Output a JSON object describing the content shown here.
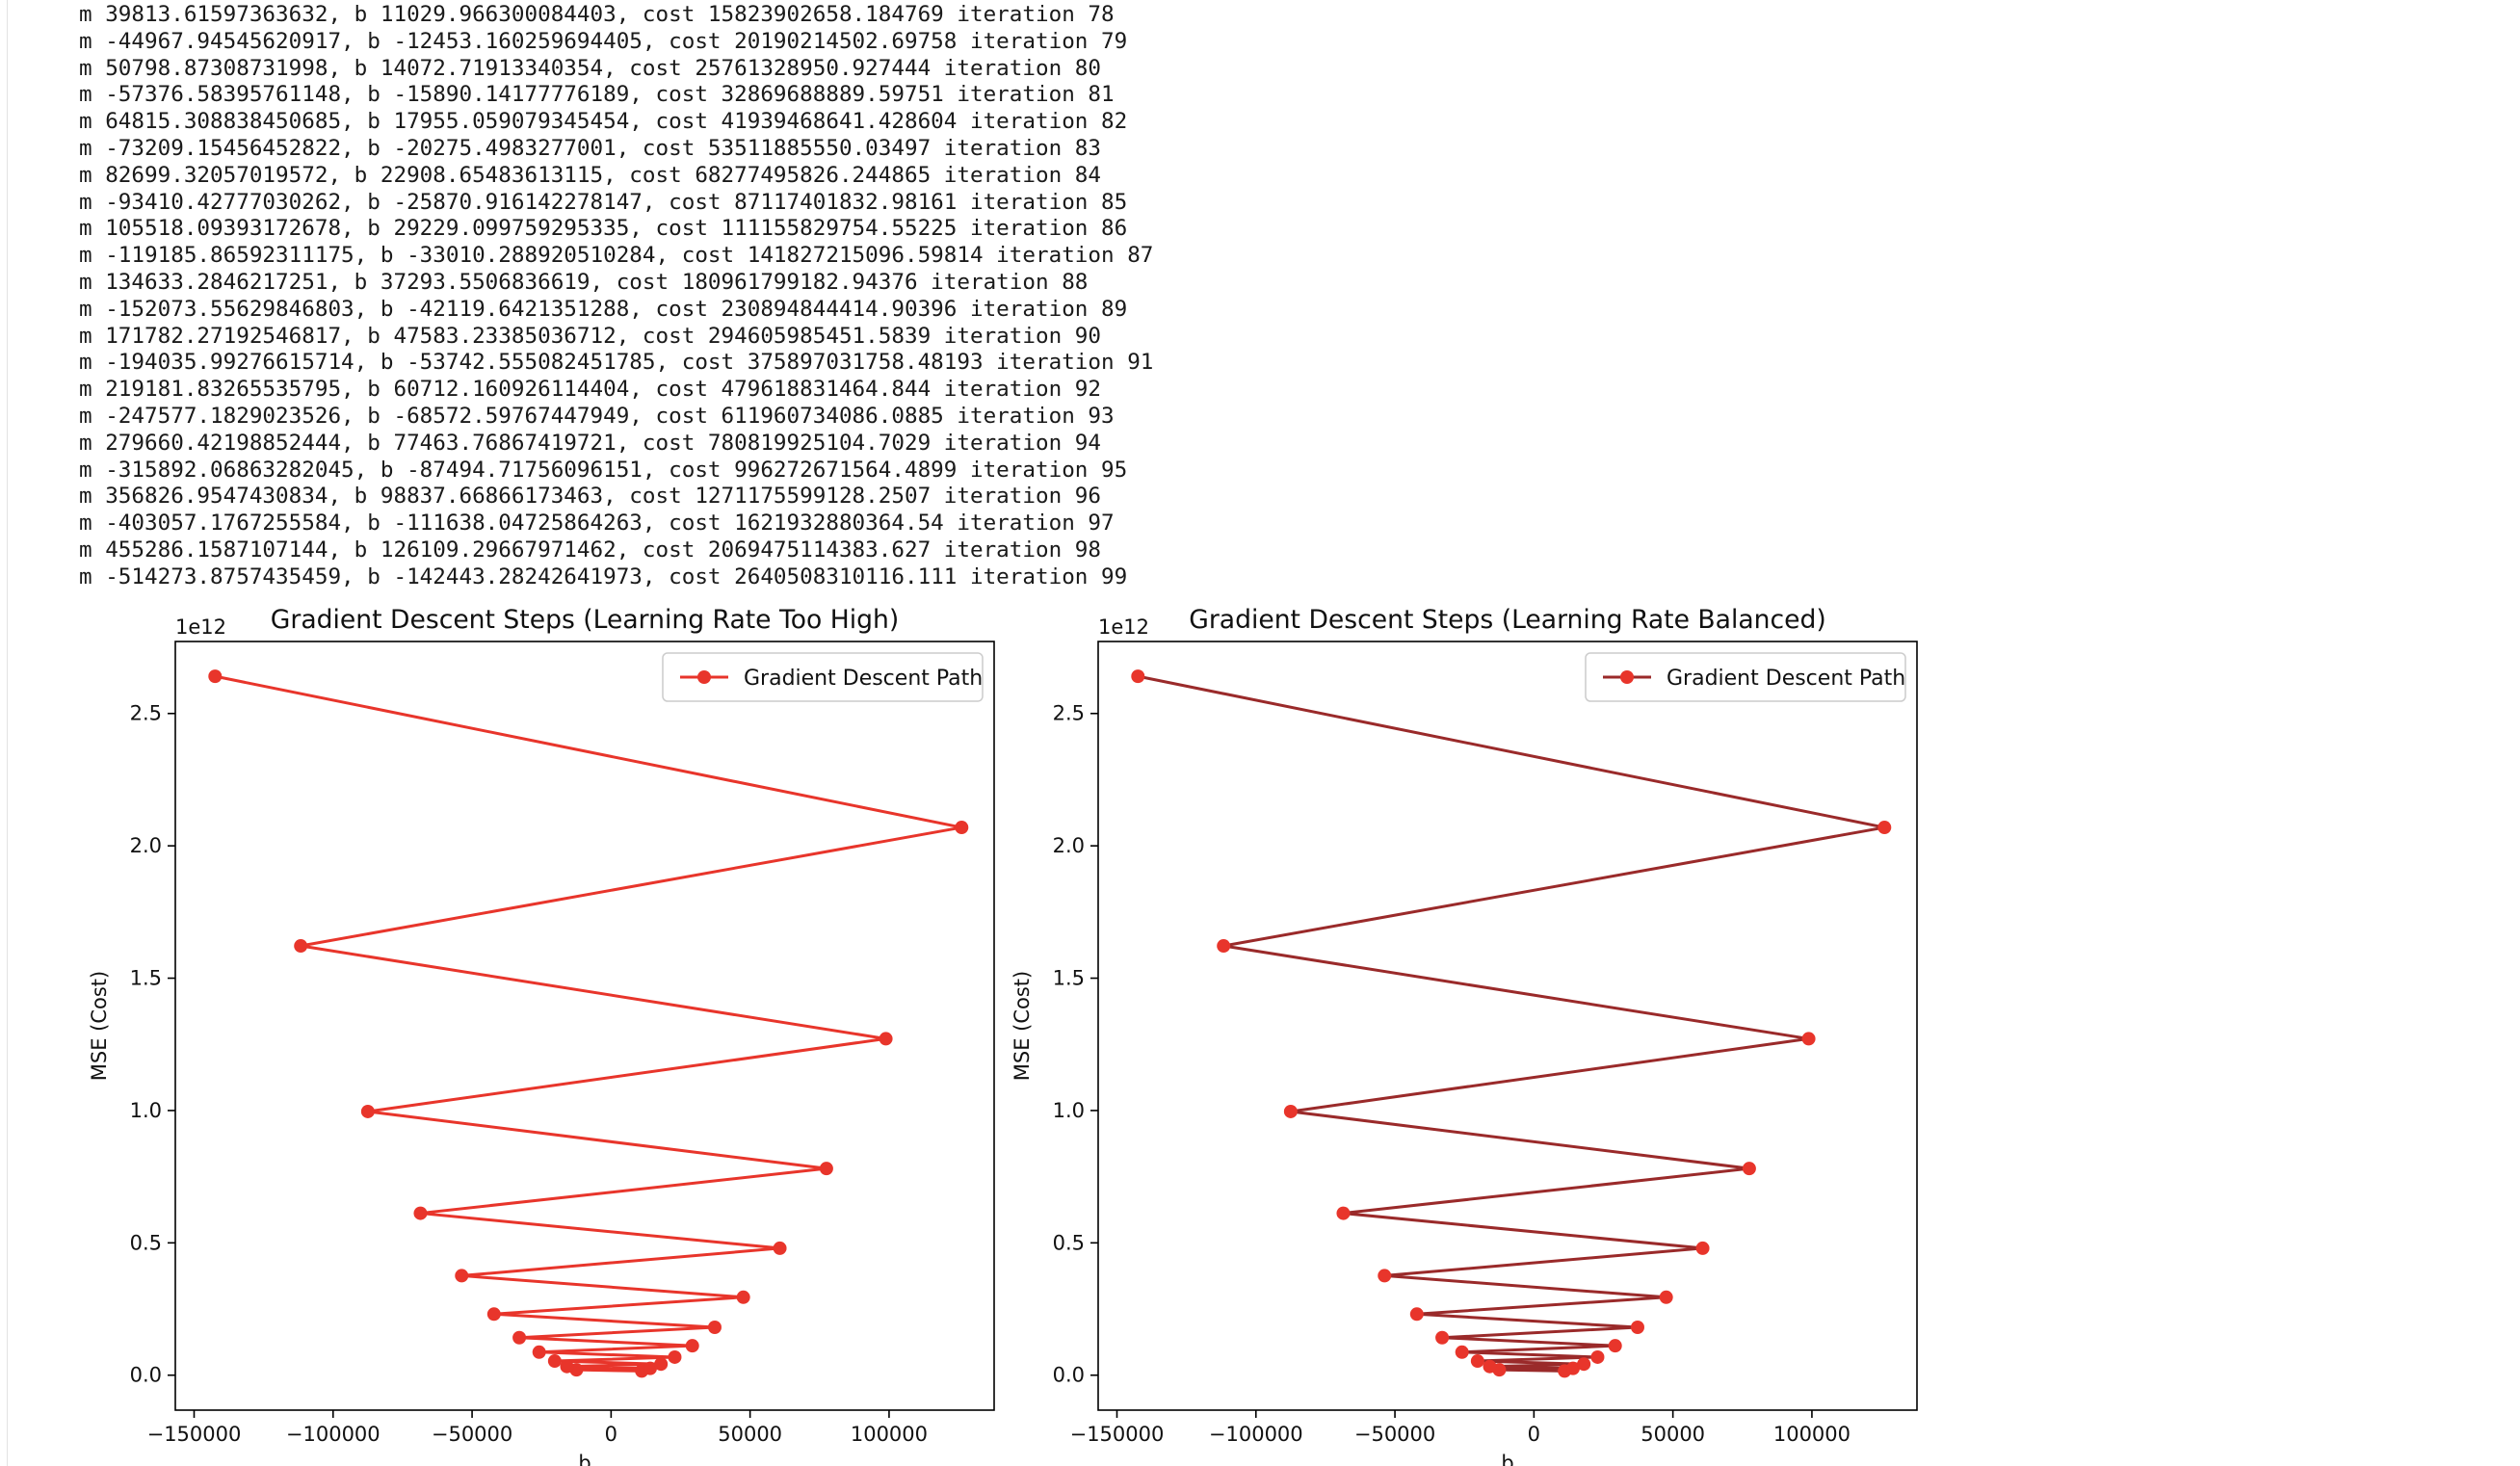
{
  "log_lines": [
    "m 39813.61597363632, b 11029.966300084403, cost 15823902658.184769 iteration 78",
    "m -44967.94545620917, b -12453.160259694405, cost 20190214502.69758 iteration 79",
    "m 50798.87308731998, b 14072.71913340354, cost 25761328950.927444 iteration 80",
    "m -57376.58395761148, b -15890.14177776189, cost 32869688889.59751 iteration 81",
    "m 64815.308838450685, b 17955.059079345454, cost 41939468641.428604 iteration 82",
    "m -73209.15456452822, b -20275.4983277001, cost 53511885550.03497 iteration 83",
    "m 82699.32057019572, b 22908.65483613115, cost 68277495826.244865 iteration 84",
    "m -93410.42777030262, b -25870.916142278147, cost 87117401832.98161 iteration 85",
    "m 105518.09393172678, b 29229.099759295335, cost 111155829754.55225 iteration 86",
    "m -119185.86592311175, b -33010.288920510284, cost 141827215096.59814 iteration 87",
    "m 134633.2846217251, b 37293.5506836619, cost 180961799182.94376 iteration 88",
    "m -152073.55629846803, b -42119.6421351288, cost 230894844414.90396 iteration 89",
    "m 171782.27192546817, b 47583.23385036712, cost 294605985451.5839 iteration 90",
    "m -194035.99276615714, b -53742.555082451785, cost 375897031758.48193 iteration 91",
    "m 219181.83265535795, b 60712.160926114404, cost 479618831464.844 iteration 92",
    "m -247577.1829023526, b -68572.59767447949, cost 611960734086.0885 iteration 93",
    "m 279660.42198852444, b 77463.76867419721, cost 780819925104.7029 iteration 94",
    "m -315892.06863282045, b -87494.71756096151, cost 996272671564.4899 iteration 95",
    "m 356826.9547430834, b 98837.66866173463, cost 1271175599128.2507 iteration 96",
    "m -403057.1767255584, b -111638.04725864263, cost 1621932880364.54 iteration 97",
    "m 455286.1587107144, b 126109.29667971462, cost 2069475114383.627 iteration 98",
    "m -514273.8757435459, b -142443.28242641973, cost 2640508310116.111 iteration 99"
  ],
  "chart_data": [
    {
      "type": "line",
      "title": "Gradient Descent Steps (Learning Rate Too High)",
      "xlabel": "b",
      "ylabel": "MSE (Cost)",
      "offset_text": "1e12",
      "xlim": [
        -156753,
        137793
      ],
      "ylim": [
        -0.132,
        2.772
      ],
      "xticks": [
        -150000,
        -100000,
        -50000,
        0,
        50000,
        100000
      ],
      "xtick_labels": [
        "−150000",
        "−100000",
        "−50000",
        "0",
        "50000",
        "100000"
      ],
      "yticks": [
        0.0,
        0.5,
        1.0,
        1.5,
        2.0,
        2.5
      ],
      "ytick_labels": [
        "0.0",
        "0.5",
        "1.0",
        "1.5",
        "2.0",
        "2.5"
      ],
      "legend": {
        "label": "Gradient Descent Path",
        "position": "upper right"
      },
      "series": [
        {
          "name": "Gradient Descent Path",
          "color": "#e8352b",
          "x": [
            11029.97,
            -12453.16,
            14072.72,
            -15890.14,
            17955.06,
            -20275.5,
            22908.65,
            -25870.92,
            29229.1,
            -33010.29,
            37293.55,
            -42119.64,
            47583.23,
            -53742.56,
            60712.16,
            -68572.6,
            77463.77,
            -87494.72,
            98837.67,
            -111638.05,
            126109.3,
            -142443.28
          ],
          "y": [
            0.015824,
            0.02019,
            0.025761,
            0.03287,
            0.041939,
            0.053512,
            0.068277,
            0.087117,
            0.111156,
            0.141827,
            0.180962,
            0.230895,
            0.294606,
            0.375897,
            0.479619,
            0.611961,
            0.78082,
            0.996273,
            1.271176,
            1.621933,
            2.069475,
            2.640508
          ]
        }
      ]
    },
    {
      "type": "line",
      "title": "Gradient Descent Steps (Learning Rate Balanced)",
      "xlabel": "b",
      "ylabel": "MSE (Cost)",
      "offset_text": "1e12",
      "xlim": [
        -156753,
        137793
      ],
      "ylim": [
        -0.132,
        2.772
      ],
      "xticks": [
        -150000,
        -100000,
        -50000,
        0,
        50000,
        100000
      ],
      "xtick_labels": [
        "−150000",
        "−100000",
        "−50000",
        "0",
        "50000",
        "100000"
      ],
      "yticks": [
        0.0,
        0.5,
        1.0,
        1.5,
        2.0,
        2.5
      ],
      "ytick_labels": [
        "0.0",
        "0.5",
        "1.0",
        "1.5",
        "2.0",
        "2.5"
      ],
      "legend": {
        "label": "Gradient Descent Path",
        "position": "upper right"
      },
      "series": [
        {
          "name": "Gradient Descent Path",
          "color": "#9a2a2a",
          "marker_color": "#e8352b",
          "x": [
            11029.97,
            -12453.16,
            14072.72,
            -15890.14,
            17955.06,
            -20275.5,
            22908.65,
            -25870.92,
            29229.1,
            -33010.29,
            37293.55,
            -42119.64,
            47583.23,
            -53742.56,
            60712.16,
            -68572.6,
            77463.77,
            -87494.72,
            98837.67,
            -111638.05,
            126109.3,
            -142443.28
          ],
          "y": [
            0.015824,
            0.02019,
            0.025761,
            0.03287,
            0.041939,
            0.053512,
            0.068277,
            0.087117,
            0.111156,
            0.141827,
            0.180962,
            0.230895,
            0.294606,
            0.375897,
            0.479619,
            0.611961,
            0.78082,
            0.996273,
            1.271176,
            1.621933,
            2.069475,
            2.640508
          ]
        }
      ]
    }
  ]
}
